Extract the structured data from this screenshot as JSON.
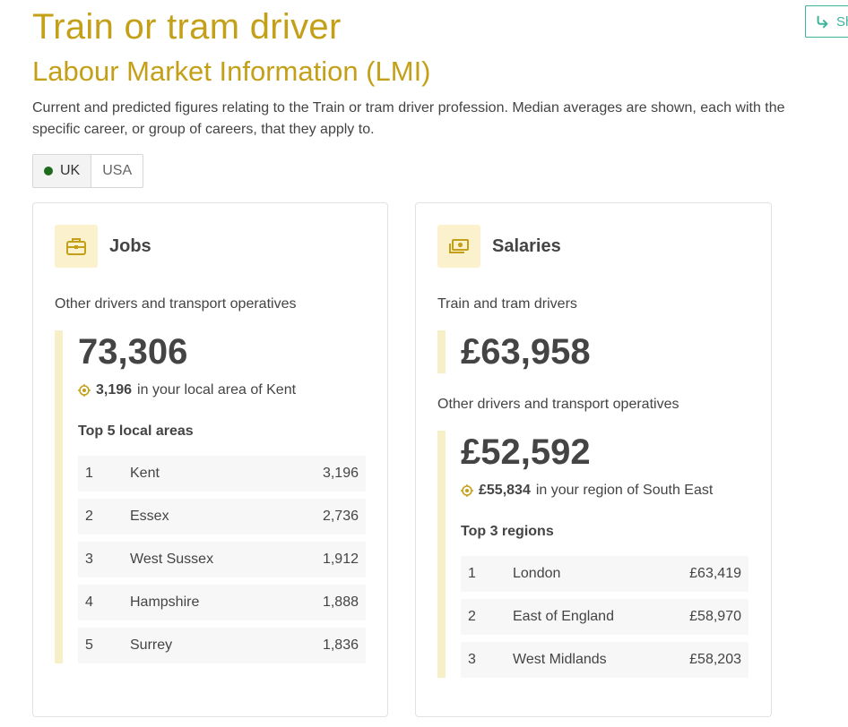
{
  "page": {
    "title": "Train or tram driver",
    "subtitle": "Labour Market Information (LMI)",
    "intro": "Current and predicted figures relating to the Train or tram driver profession. Median averages are shown, each with the specific career, or group of careers, that they apply to.",
    "share_label": "Sh"
  },
  "region_toggle": {
    "options": [
      {
        "label": "UK",
        "selected": true
      },
      {
        "label": "USA",
        "selected": false
      }
    ]
  },
  "jobs": {
    "title": "Jobs",
    "icon": "briefcase-icon",
    "group": "Other drivers and transport operatives",
    "total": "73,306",
    "local_value": "3,196",
    "local_text": "in your local area of Kent",
    "top_label": "Top 5 local areas",
    "rows": [
      {
        "rank": "1",
        "name": "Kent",
        "value": "3,196"
      },
      {
        "rank": "2",
        "name": "Essex",
        "value": "2,736"
      },
      {
        "rank": "3",
        "name": "West Sussex",
        "value": "1,912"
      },
      {
        "rank": "4",
        "name": "Hampshire",
        "value": "1,888"
      },
      {
        "rank": "5",
        "name": "Surrey",
        "value": "1,836"
      }
    ]
  },
  "salaries": {
    "title": "Salaries",
    "icon": "money-icon",
    "group1": "Train and tram drivers",
    "value1": "£63,958",
    "group2": "Other drivers and transport operatives",
    "value2": "£52,592",
    "local_value": "£55,834",
    "local_text": "in your region of South East",
    "top_label": "Top 3 regions",
    "rows": [
      {
        "rank": "1",
        "name": "London",
        "value": "£63,419"
      },
      {
        "rank": "2",
        "name": "East of England",
        "value": "£58,970"
      },
      {
        "rank": "3",
        "name": "West Midlands",
        "value": "£58,203"
      }
    ]
  },
  "colors": {
    "accent": "#c4a018",
    "icon_bg": "#fbf1cc",
    "bar": "#f7efc8",
    "share": "#3db39e",
    "uk_dot": "#1e6b1e"
  }
}
